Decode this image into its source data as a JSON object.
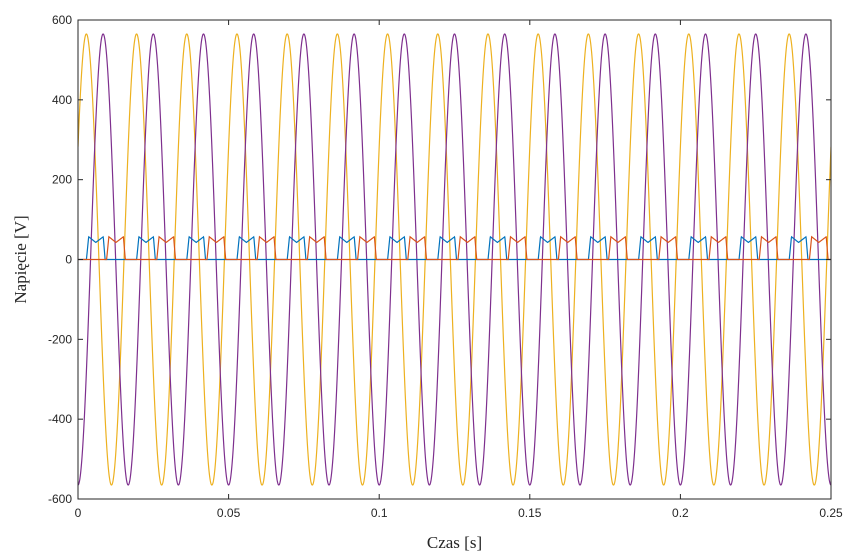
{
  "chart_data": {
    "type": "line",
    "xlabel": "Czas [s]",
    "ylabel": "Napięcie [V]",
    "xlim": [
      0,
      0.25
    ],
    "ylim": [
      -600,
      600
    ],
    "xticks": [
      0,
      0.05,
      0.1,
      0.15,
      0.2,
      0.25
    ],
    "xtick_labels": [
      "0",
      "0.05",
      "0.1",
      "0.15",
      "0.2",
      "0.25"
    ],
    "yticks": [
      -600,
      -400,
      -200,
      0,
      200,
      400,
      600
    ],
    "ytick_labels": [
      "-600",
      "-400",
      "-200",
      "0",
      "200",
      "400",
      "600"
    ],
    "grid": false,
    "legend": "none",
    "series": [
      {
        "kind": "sine",
        "amplitude": 565,
        "frequency_hz": 60,
        "phase_deg": 30,
        "color": "#EDB120"
      },
      {
        "kind": "sine",
        "amplitude": 565,
        "frequency_hz": 60,
        "phase_deg": -90,
        "color": "#7E2F8E"
      },
      {
        "kind": "rectified-bump",
        "amplitude": 57,
        "frequency_hz": 60,
        "offset_s": 0.0028,
        "duration_s": 0.0062,
        "color": "#0072BD"
      },
      {
        "kind": "rectified-bump",
        "amplitude": 57,
        "frequency_hz": 60,
        "offset_s": 0.0095,
        "duration_s": 0.0062,
        "color": "#D95319"
      }
    ]
  }
}
